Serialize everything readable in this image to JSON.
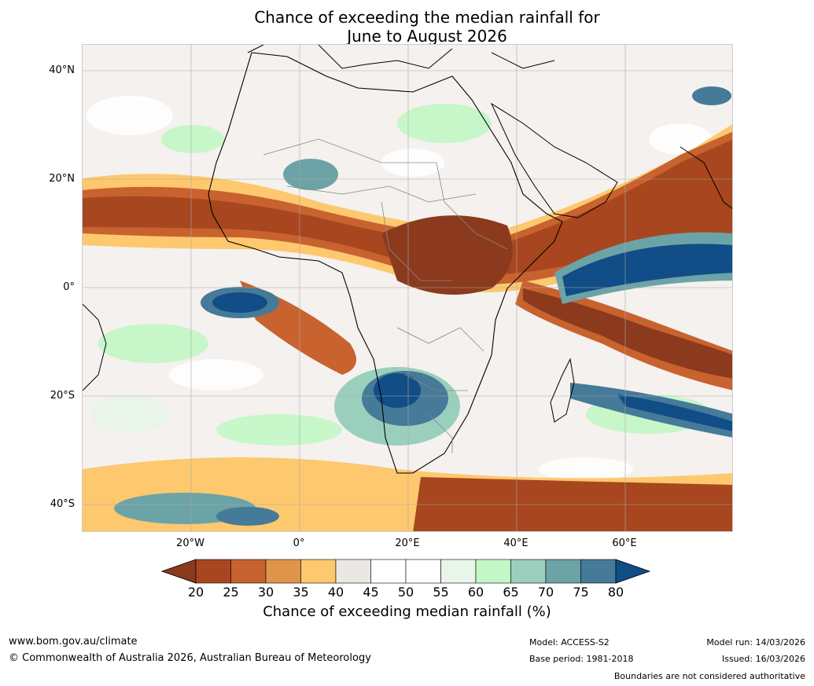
{
  "title": {
    "line1": "Chance of exceeding the median rainfall for",
    "line2": "June to August 2026"
  },
  "map": {
    "latitude_labels": [
      "40°N",
      "20°N",
      "0°",
      "20°S",
      "40°S"
    ],
    "longitude_labels": [
      "20°W",
      "0°",
      "20°E",
      "40°E",
      "60°E"
    ]
  },
  "colorbar": {
    "ticks": [
      "20",
      "25",
      "30",
      "35",
      "40",
      "45",
      "50",
      "55",
      "60",
      "65",
      "70",
      "75",
      "80"
    ],
    "colors": [
      "#8b3a1e",
      "#a8461f",
      "#c8622f",
      "#e0944a",
      "#fdc86e",
      "#ebe8e4",
      "#ffffff",
      "#ffffff",
      "#e8f5e8",
      "#c3f7c5",
      "#9bcfbd",
      "#6ca3a6",
      "#457a98",
      "#114d86"
    ],
    "label": "Chance of exceeding median rainfall (%)"
  },
  "footer": {
    "website": "www.bom.gov.au/climate",
    "copyright": "© Commonwealth of Australia 2026, Australian Bureau of Meteorology",
    "model": "Model: ACCESS-S2",
    "base_period": "Base period: 1981-2018",
    "model_run": "Model run: 14/03/2026",
    "issued": "Issued: 16/03/2026",
    "disclaimer": "Boundaries are not considered authoritative"
  }
}
